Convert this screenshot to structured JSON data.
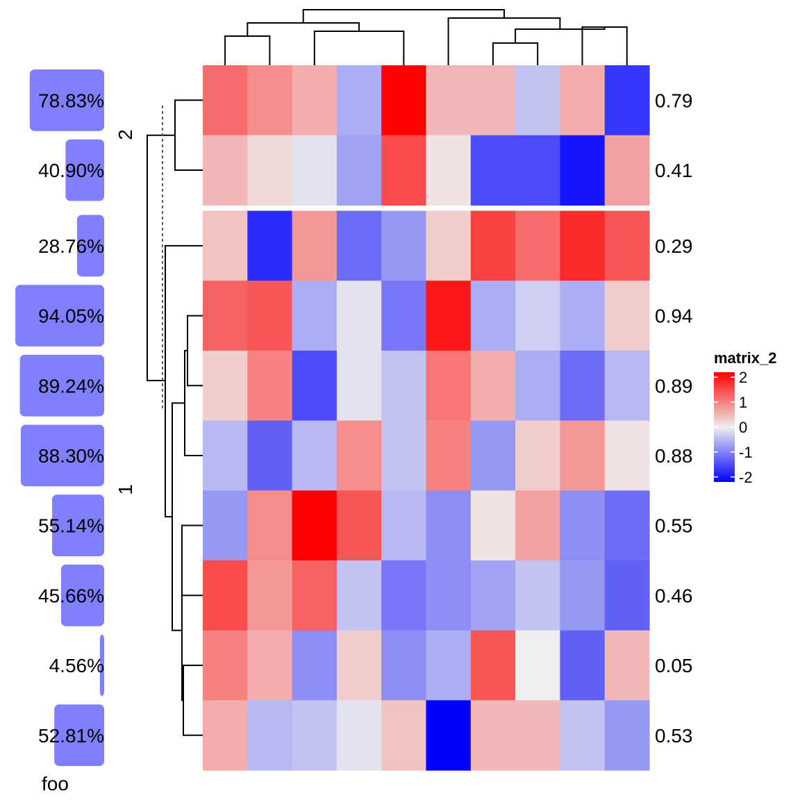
{
  "chart_data": {
    "type": "heatmap",
    "title": "",
    "annotation_label": "foo",
    "legend": {
      "title": "matrix_2",
      "ticks": [
        2,
        1,
        0,
        -1,
        -2
      ],
      "tick_labels": [
        "2",
        "1",
        "0",
        "-1",
        "-2"
      ],
      "range": [
        -2.2,
        2.2
      ],
      "placement": "right"
    },
    "colors": {
      "low": "#0000ff",
      "mid": "#eeeeee",
      "high": "#ff0000",
      "bar": "#7f7fff"
    },
    "splits": [
      {
        "label": "2",
        "rows": [
          0,
          1
        ]
      },
      {
        "label": "1",
        "rows": [
          2,
          3,
          4,
          5,
          6,
          7,
          8,
          9
        ]
      }
    ],
    "row_labels": [
      "0.79",
      "0.41",
      "0.29",
      "0.94",
      "0.89",
      "0.88",
      "0.55",
      "0.46",
      "0.05",
      "0.53"
    ],
    "bar_values": [
      78.83,
      40.9,
      28.76,
      94.05,
      89.24,
      88.3,
      55.14,
      45.66,
      4.56,
      52.81
    ],
    "bar_labels": [
      "78.83%",
      "40.90%",
      "28.76%",
      "94.05%",
      "89.24%",
      "88.30%",
      "55.14%",
      "45.66%",
      "4.56%",
      "52.81%"
    ],
    "values": [
      [
        1.2,
        0.9,
        0.6,
        -0.6,
        2.2,
        0.5,
        0.5,
        -0.4,
        0.6,
        -1.7
      ],
      [
        0.5,
        0.2,
        -0.1,
        -0.7,
        1.5,
        0.1,
        -1.5,
        -1.5,
        -2.0,
        0.7
      ],
      [
        0.4,
        -1.8,
        0.8,
        -1.2,
        -0.8,
        0.3,
        1.6,
        1.2,
        1.8,
        1.4
      ],
      [
        1.3,
        1.4,
        -0.6,
        -0.1,
        -1.1,
        2.0,
        -0.6,
        -0.3,
        -0.6,
        0.3
      ],
      [
        0.3,
        1.0,
        -1.5,
        -0.1,
        -0.4,
        1.1,
        0.6,
        -0.6,
        -1.2,
        -0.5
      ],
      [
        -0.5,
        -1.3,
        -0.5,
        0.9,
        -0.4,
        1.0,
        -0.8,
        0.3,
        0.8,
        0.1
      ],
      [
        -0.8,
        0.9,
        2.2,
        1.4,
        -0.5,
        -0.9,
        0.1,
        0.7,
        -0.9,
        -1.2
      ],
      [
        1.5,
        0.8,
        1.3,
        -0.4,
        -1.1,
        -0.9,
        -0.7,
        -0.4,
        -0.8,
        -1.3
      ],
      [
        1.0,
        0.6,
        -0.9,
        0.3,
        -0.9,
        -0.6,
        1.4,
        0.0,
        -1.3,
        0.5
      ],
      [
        0.6,
        -0.5,
        -0.4,
        -0.1,
        0.4,
        -2.2,
        0.5,
        0.5,
        -0.4,
        -0.8
      ]
    ]
  }
}
